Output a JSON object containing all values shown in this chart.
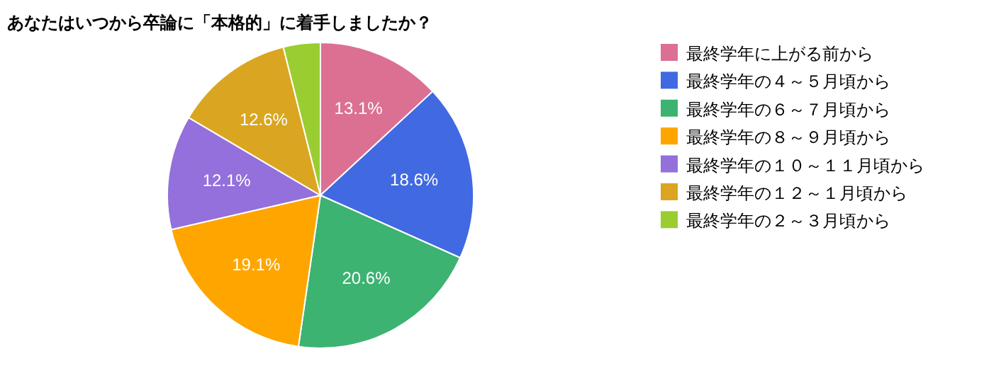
{
  "chart_data": {
    "type": "pie",
    "title": "あなたはいつから卒論に「本格的」に着手しましたか？",
    "categories": [
      "最終学年に上がる前から",
      "最終学年の４～５月頃から",
      "最終学年の６～７月頃から",
      "最終学年の８～９月頃から",
      "最終学年の１０～１１月頃から",
      "最終学年の１２～１月頃から",
      "最終学年の２～３月頃から"
    ],
    "values": [
      13.1,
      18.6,
      20.6,
      19.1,
      12.1,
      12.6,
      3.9
    ],
    "value_labels": [
      "13.1%",
      "18.6%",
      "20.6%",
      "19.1%",
      "12.1%",
      "12.6%",
      null
    ],
    "colors": [
      "#db7093",
      "#4169e1",
      "#3cb371",
      "#ffa500",
      "#9370db",
      "#daa520",
      "#9acd32"
    ],
    "legend": "right"
  }
}
